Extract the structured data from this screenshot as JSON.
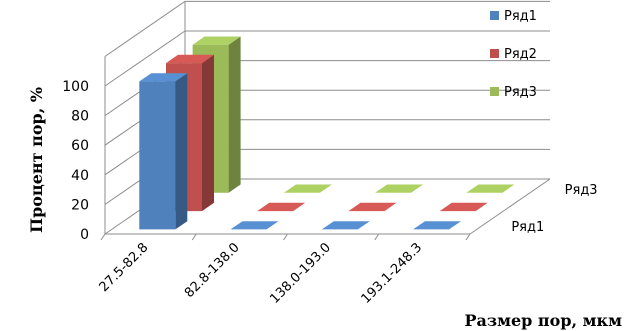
{
  "chart_data": {
    "type": "bar",
    "subtype": "3d-column",
    "categories": [
      "27.5-82.8",
      "82.8-138.0",
      "138.0-193.0",
      "193.1-248.3"
    ],
    "series": [
      {
        "name": "Ряд1",
        "values": [
          100,
          0,
          0,
          0
        ],
        "color": "#4F81BD"
      },
      {
        "name": "Ряд2",
        "values": [
          100,
          0,
          0,
          0
        ],
        "color": "#C0504D"
      },
      {
        "name": "Ряд3",
        "values": [
          100,
          0,
          0,
          0
        ],
        "color": "#9BBB59"
      }
    ],
    "depth_axis_labels": [
      "Ряд1",
      "Ряд3"
    ],
    "xlabel": "Размер пор, мкм",
    "ylabel": "Процент пор, %",
    "yticks": [
      0,
      20,
      40,
      60,
      80,
      100
    ],
    "ylim": [
      0,
      100
    ],
    "grid": true,
    "legend": "right"
  }
}
